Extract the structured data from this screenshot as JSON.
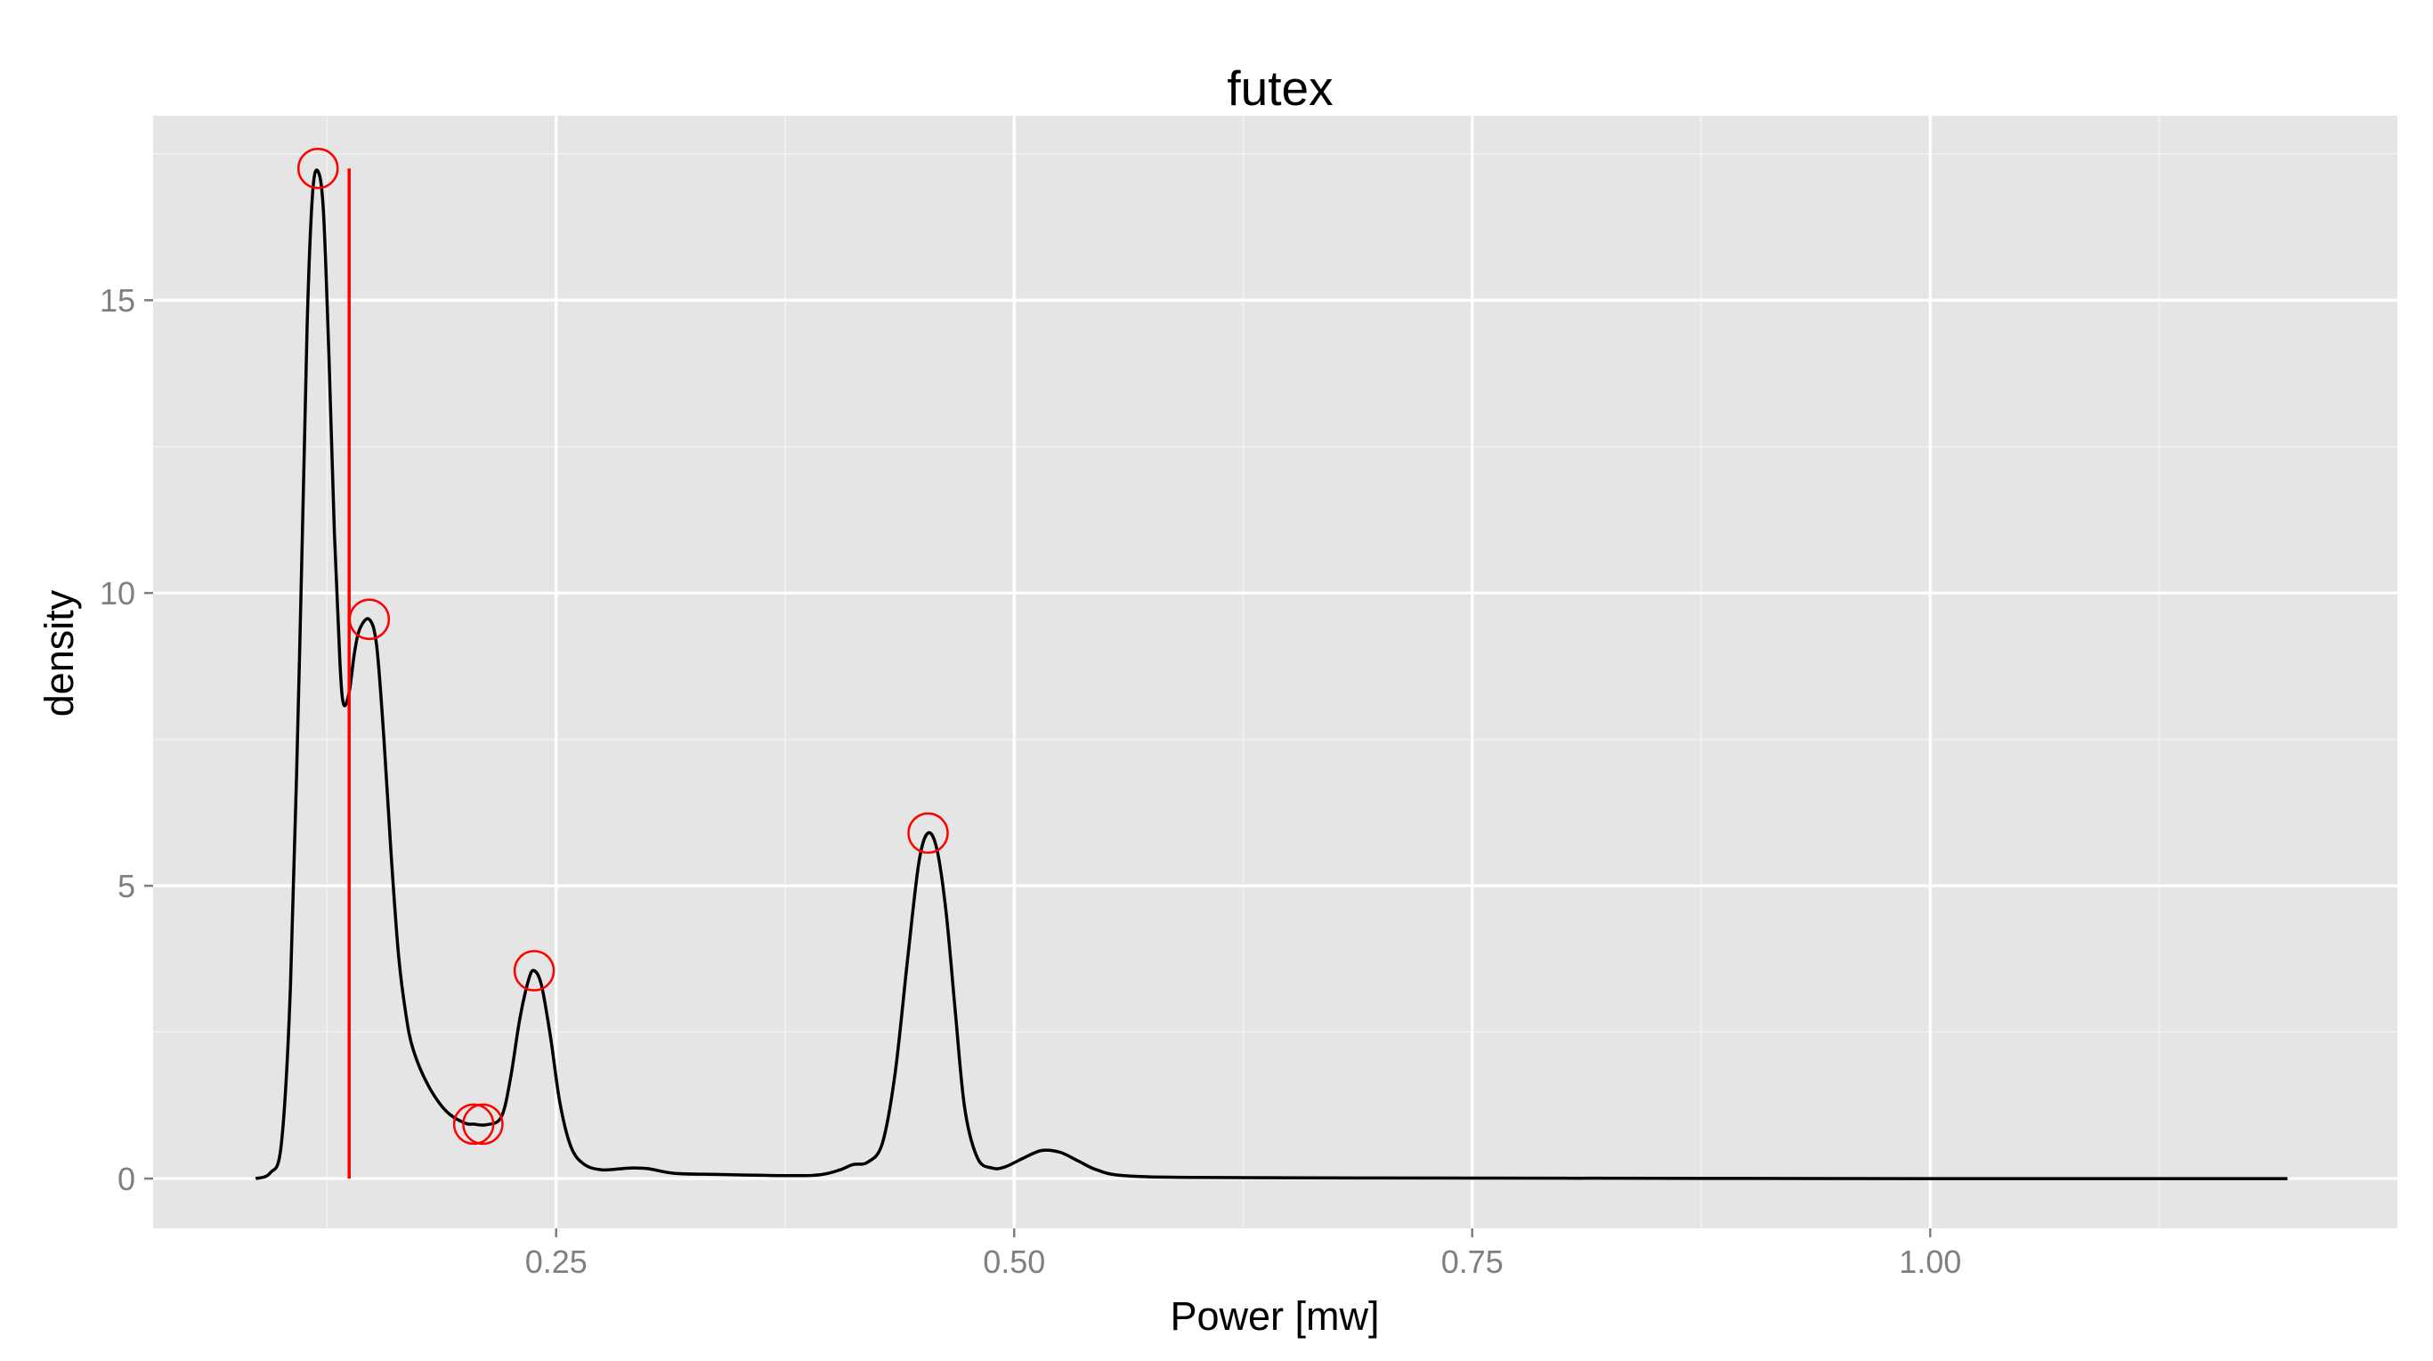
{
  "chart_data": {
    "type": "line",
    "title": "futex",
    "xlabel": "Power [mw]",
    "ylabel": "density",
    "xlim": [
      0.03,
      1.255
    ],
    "ylim": [
      -0.85,
      18.15
    ],
    "x_ticks": [
      0.25,
      0.5,
      0.75,
      1.0
    ],
    "x_tick_labels": [
      "0.25",
      "0.50",
      "0.75",
      "1.00"
    ],
    "y_ticks": [
      0,
      5,
      10,
      15
    ],
    "y_tick_labels": [
      "0",
      "5",
      "10",
      "15"
    ],
    "grid": true,
    "background_color": "#e5e5e5",
    "grid_color": "#ffffff",
    "line_color": "#000000",
    "marker_color": "#ff0000",
    "series": [
      {
        "points": [
          [
            0.086,
            0.0
          ],
          [
            0.094,
            0.1
          ],
          [
            0.1,
            0.6
          ],
          [
            0.105,
            3.3
          ],
          [
            0.11,
            9.0
          ],
          [
            0.114,
            14.5
          ],
          [
            0.117,
            16.8
          ],
          [
            0.12,
            17.2
          ],
          [
            0.123,
            16.5
          ],
          [
            0.126,
            14.0
          ],
          [
            0.129,
            11.0
          ],
          [
            0.132,
            8.8
          ],
          [
            0.134,
            8.1
          ],
          [
            0.137,
            8.3
          ],
          [
            0.14,
            9.0
          ],
          [
            0.143,
            9.4
          ],
          [
            0.148,
            9.55
          ],
          [
            0.152,
            9.1
          ],
          [
            0.156,
            7.5
          ],
          [
            0.16,
            5.5
          ],
          [
            0.164,
            3.8
          ],
          [
            0.168,
            2.8
          ],
          [
            0.172,
            2.2
          ],
          [
            0.18,
            1.6
          ],
          [
            0.19,
            1.15
          ],
          [
            0.2,
            0.95
          ],
          [
            0.205,
            0.93
          ],
          [
            0.212,
            0.92
          ],
          [
            0.22,
            1.05
          ],
          [
            0.225,
            1.7
          ],
          [
            0.23,
            2.7
          ],
          [
            0.235,
            3.4
          ],
          [
            0.238,
            3.55
          ],
          [
            0.242,
            3.3
          ],
          [
            0.247,
            2.4
          ],
          [
            0.252,
            1.3
          ],
          [
            0.258,
            0.55
          ],
          [
            0.265,
            0.25
          ],
          [
            0.275,
            0.15
          ],
          [
            0.29,
            0.18
          ],
          [
            0.3,
            0.17
          ],
          [
            0.315,
            0.09
          ],
          [
            0.34,
            0.07
          ],
          [
            0.38,
            0.05
          ],
          [
            0.395,
            0.07
          ],
          [
            0.405,
            0.15
          ],
          [
            0.412,
            0.24
          ],
          [
            0.42,
            0.28
          ],
          [
            0.428,
            0.6
          ],
          [
            0.435,
            1.8
          ],
          [
            0.442,
            3.8
          ],
          [
            0.448,
            5.4
          ],
          [
            0.453,
            5.9
          ],
          [
            0.458,
            5.6
          ],
          [
            0.463,
            4.5
          ],
          [
            0.468,
            2.8
          ],
          [
            0.473,
            1.2
          ],
          [
            0.48,
            0.35
          ],
          [
            0.488,
            0.18
          ],
          [
            0.495,
            0.2
          ],
          [
            0.505,
            0.35
          ],
          [
            0.515,
            0.48
          ],
          [
            0.525,
            0.45
          ],
          [
            0.535,
            0.3
          ],
          [
            0.545,
            0.15
          ],
          [
            0.56,
            0.05
          ],
          [
            0.6,
            0.02
          ],
          [
            0.7,
            0.01
          ],
          [
            0.85,
            0.005
          ],
          [
            1.0,
            0.0
          ],
          [
            1.195,
            0.0
          ]
        ]
      }
    ],
    "vertical_line": {
      "x": 0.137,
      "y_from": 0.0,
      "y_to": 17.25
    },
    "markers": [
      {
        "x": 0.12,
        "y": 17.25
      },
      {
        "x": 0.148,
        "y": 9.55
      },
      {
        "x": 0.205,
        "y": 0.93
      },
      {
        "x": 0.21,
        "y": 0.93
      },
      {
        "x": 0.238,
        "y": 3.55
      },
      {
        "x": 0.453,
        "y": 5.9
      }
    ]
  }
}
